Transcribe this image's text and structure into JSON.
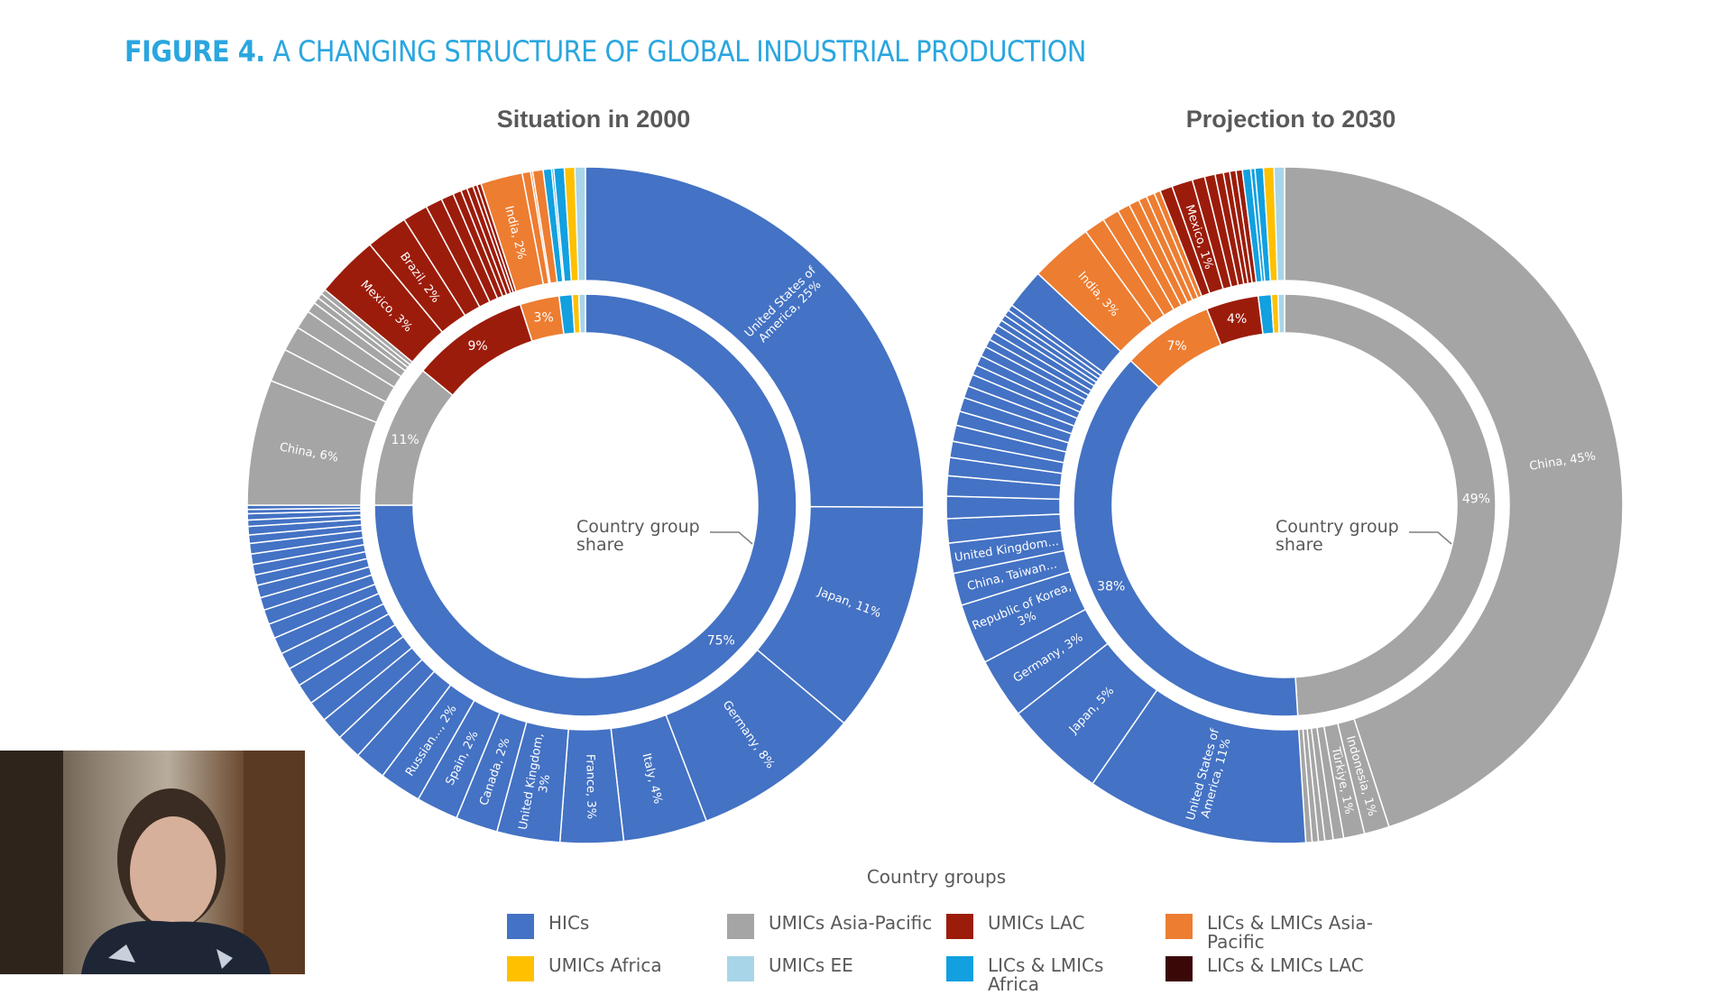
{
  "title": {
    "prefix": "FIGURE 4.",
    "text": "A CHANGING STRUCTURE OF GLOBAL INDUSTRIAL PRODUCTION"
  },
  "colors": {
    "HICs": "#4472C4",
    "UMICs Asia-Pacific": "#A5A5A5",
    "UMICs LAC": "#9C1C0B",
    "LICs & LMICs Asia-Pacific": "#ED7D31",
    "UMICs Africa": "#FFC000",
    "UMICs EE": "#A8D5E8",
    "LICs & LMICs Africa": "#12A0E0",
    "LICs & LMICs LAC": "#3B0808",
    "title": "#2AA6DF"
  },
  "legend": {
    "title": "Country groups",
    "items": [
      "HICs",
      "UMICs Asia-Pacific",
      "UMICs LAC",
      "LICs & LMICs Asia-Pacific",
      "UMICs Africa",
      "UMICs EE",
      "LICs & LMICs Africa",
      "LICs & LMICs LAC"
    ]
  },
  "chart_data": [
    {
      "type": "sunburst",
      "title": "Situation in 2000",
      "center_label": "Country group\nshare",
      "groups": [
        {
          "group": "HICs",
          "value": 75,
          "label": "75%",
          "countries": [
            {
              "label": "United States of\nAmerica, 25%",
              "value": 25
            },
            {
              "label": "Japan, 11%",
              "value": 11
            },
            {
              "label": "Germany, 8%",
              "value": 8
            },
            {
              "label": "Italy, 4%",
              "value": 4
            },
            {
              "label": "France, 3%",
              "value": 3
            },
            {
              "label": "United Kingdom,\n3%",
              "value": 3
            },
            {
              "label": "Canada, 2%",
              "value": 2
            },
            {
              "label": "Spain, 2%",
              "value": 2
            },
            {
              "label": "Russian..., 2%",
              "value": 2
            },
            {
              "label": "",
              "value": 1.5
            },
            {
              "label": "",
              "value": 1.2
            },
            {
              "label": "",
              "value": 1.1
            },
            {
              "label": "",
              "value": 1
            },
            {
              "label": "",
              "value": 1
            },
            {
              "label": "",
              "value": 0.9
            },
            {
              "label": "",
              "value": 0.8
            },
            {
              "label": "",
              "value": 0.8
            },
            {
              "label": "",
              "value": 0.7
            },
            {
              "label": "",
              "value": 0.7
            },
            {
              "label": "",
              "value": 0.6
            },
            {
              "label": "",
              "value": 0.6
            },
            {
              "label": "",
              "value": 0.5
            },
            {
              "label": "",
              "value": 0.5
            },
            {
              "label": "",
              "value": 0.5
            },
            {
              "label": "",
              "value": 0.5
            },
            {
              "label": "",
              "value": 0.4
            },
            {
              "label": "",
              "value": 0.4
            },
            {
              "label": "",
              "value": 0.3
            },
            {
              "label": "",
              "value": 0.3
            },
            {
              "label": "",
              "value": 0.2
            },
            {
              "label": "",
              "value": 0.2
            }
          ]
        },
        {
          "group": "UMICs Asia-Pacific",
          "value": 11,
          "label": "11%",
          "countries": [
            {
              "label": "China, 6%",
              "value": 6
            },
            {
              "label": "",
              "value": 1.6
            },
            {
              "label": "",
              "value": 1.2
            },
            {
              "label": "",
              "value": 0.9
            },
            {
              "label": "",
              "value": 0.5
            },
            {
              "label": "",
              "value": 0.3
            },
            {
              "label": "",
              "value": 0.25
            },
            {
              "label": "",
              "value": 0.25
            }
          ]
        },
        {
          "group": "UMICs LAC",
          "value": 9,
          "label": "9%",
          "countries": [
            {
              "label": "Mexico, 3%",
              "value": 3
            },
            {
              "label": "Brazil, 2%",
              "value": 2
            },
            {
              "label": "",
              "value": 1.2
            },
            {
              "label": "",
              "value": 0.8
            },
            {
              "label": "",
              "value": 0.6
            },
            {
              "label": "",
              "value": 0.4
            },
            {
              "label": "",
              "value": 0.3
            },
            {
              "label": "",
              "value": 0.3
            },
            {
              "label": "",
              "value": 0.2
            },
            {
              "label": "",
              "value": 0.2
            }
          ]
        },
        {
          "group": "LICs & LMICs Asia-Pacific",
          "value": 3,
          "label": "3%",
          "countries": [
            {
              "label": "India, 2%",
              "value": 2
            },
            {
              "label": "",
              "value": 0.4
            },
            {
              "label": "",
              "value": 0.1
            },
            {
              "label": "",
              "value": 0.5
            }
          ]
        },
        {
          "group": "LICs & LMICs Africa",
          "value": 1,
          "label": "",
          "countries": [
            {
              "label": "",
              "value": 0.4
            },
            {
              "label": "",
              "value": 0.1
            },
            {
              "label": "",
              "value": 0.5
            }
          ]
        },
        {
          "group": "UMICs Africa",
          "value": 0.5,
          "label": "",
          "countries": [
            {
              "label": "",
              "value": 0.5
            }
          ]
        },
        {
          "group": "UMICs EE",
          "value": 0.5,
          "label": "",
          "countries": [
            {
              "label": "",
              "value": 0.5
            }
          ]
        }
      ]
    },
    {
      "type": "sunburst",
      "title": "Projection to 2030",
      "center_label": "Country group\nshare",
      "groups": [
        {
          "group": "UMICs Asia-Pacific",
          "value": 49,
          "label": "49%",
          "countries": [
            {
              "label": "China, 45%",
              "value": 45
            },
            {
              "label": "Indonesia, 1%",
              "value": 1.2
            },
            {
              "label": "Türkiye, 1%",
              "value": 1
            },
            {
              "label": "",
              "value": 0.5
            },
            {
              "label": "",
              "value": 0.4
            },
            {
              "label": "",
              "value": 0.3
            },
            {
              "label": "",
              "value": 0.3
            },
            {
              "label": "",
              "value": 0.3
            }
          ]
        },
        {
          "group": "HICs",
          "value": 38,
          "label": "38%",
          "countries": [
            {
              "label": "United States of\nAmerica, 11%",
              "value": 11
            },
            {
              "label": "Japan, 5%",
              "value": 5
            },
            {
              "label": "Germany, 3%",
              "value": 3
            },
            {
              "label": "Republic of Korea,\n3%",
              "value": 3
            },
            {
              "label": "China, Taiwan...",
              "value": 1.6
            },
            {
              "label": "United Kingdom...",
              "value": 1.5
            },
            {
              "label": "",
              "value": 1.2
            },
            {
              "label": "",
              "value": 1.1
            },
            {
              "label": "",
              "value": 1
            },
            {
              "label": "",
              "value": 0.9
            },
            {
              "label": "",
              "value": 0.8
            },
            {
              "label": "",
              "value": 0.8
            },
            {
              "label": "",
              "value": 0.7
            },
            {
              "label": "",
              "value": 0.7
            },
            {
              "label": "",
              "value": 0.6
            },
            {
              "label": "",
              "value": 0.6
            },
            {
              "label": "",
              "value": 0.5
            },
            {
              "label": "",
              "value": 0.5
            },
            {
              "label": "",
              "value": 0.5
            },
            {
              "label": "",
              "value": 0.4
            },
            {
              "label": "",
              "value": 0.4
            },
            {
              "label": "",
              "value": 0.4
            },
            {
              "label": "",
              "value": 0.3
            },
            {
              "label": "",
              "value": 0.3
            },
            {
              "label": "",
              "value": 0.3
            },
            {
              "label": "",
              "value": 0.3
            },
            {
              "label": "",
              "value": 2
            }
          ]
        },
        {
          "group": "LICs & LMICs Asia-Pacific",
          "value": 7,
          "label": "7%",
          "countries": [
            {
              "label": "India, 3%",
              "value": 3
            },
            {
              "label": "",
              "value": 1
            },
            {
              "label": "",
              "value": 0.8
            },
            {
              "label": "",
              "value": 0.6
            },
            {
              "label": "",
              "value": 0.5
            },
            {
              "label": "",
              "value": 0.4
            },
            {
              "label": "",
              "value": 0.4
            },
            {
              "label": "",
              "value": 0.3
            }
          ]
        },
        {
          "group": "UMICs LAC",
          "value": 4,
          "label": "4%",
          "countries": [
            {
              "label": "",
              "value": 0.6
            },
            {
              "label": "Mexico, 1%",
              "value": 1
            },
            {
              "label": "",
              "value": 0.6
            },
            {
              "label": "",
              "value": 0.5
            },
            {
              "label": "",
              "value": 0.4
            },
            {
              "label": "",
              "value": 0.3
            },
            {
              "label": "",
              "value": 0.3
            },
            {
              "label": "",
              "value": 0.3
            }
          ]
        },
        {
          "group": "LICs & LMICs Africa",
          "value": 1,
          "label": "",
          "countries": [
            {
              "label": "",
              "value": 0.4
            },
            {
              "label": "",
              "value": 0.2
            },
            {
              "label": "",
              "value": 0.4
            }
          ]
        },
        {
          "group": "UMICs Africa",
          "value": 0.5,
          "label": "",
          "countries": [
            {
              "label": "",
              "value": 0.5
            }
          ]
        },
        {
          "group": "UMICs EE",
          "value": 0.5,
          "label": "",
          "countries": [
            {
              "label": "",
              "value": 0.5
            }
          ]
        }
      ]
    }
  ]
}
